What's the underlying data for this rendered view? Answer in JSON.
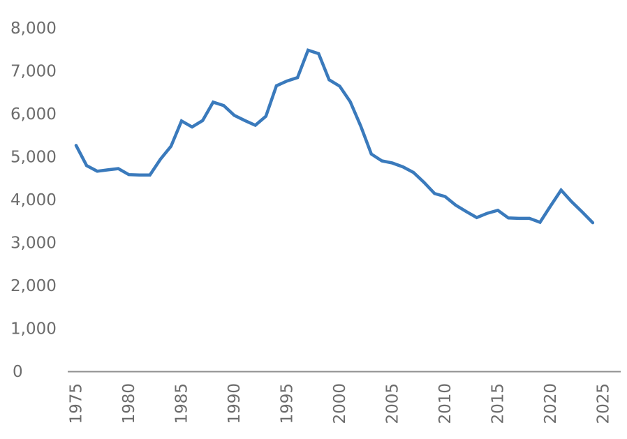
{
  "chart_data": {
    "type": "line",
    "title": "",
    "xlabel": "",
    "ylabel": "",
    "x": [
      1975,
      1976,
      1977,
      1978,
      1979,
      1980,
      1981,
      1982,
      1983,
      1984,
      1985,
      1986,
      1987,
      1988,
      1989,
      1990,
      1991,
      1992,
      1993,
      1994,
      1995,
      1996,
      1997,
      1998,
      1999,
      2000,
      2001,
      2002,
      2003,
      2004,
      2005,
      2006,
      2007,
      2008,
      2009,
      2010,
      2011,
      2012,
      2013,
      2014,
      2015,
      2016,
      2017,
      2018,
      2019,
      2020,
      2021,
      2022,
      2023,
      2024
    ],
    "values": [
      5270,
      4800,
      4670,
      4700,
      4730,
      4590,
      4580,
      4580,
      4950,
      5250,
      5840,
      5700,
      5850,
      6280,
      6200,
      5970,
      5850,
      5740,
      5950,
      6660,
      6770,
      6850,
      7490,
      7410,
      6800,
      6650,
      6290,
      5720,
      5070,
      4910,
      4860,
      4770,
      4640,
      4410,
      4150,
      4080,
      3880,
      3730,
      3590,
      3690,
      3760,
      3580,
      3570,
      3570,
      3480,
      3860,
      4230,
      3960,
      3720,
      3470
    ],
    "ylim": [
      0,
      8000
    ],
    "xlim": [
      1974,
      2027
    ],
    "yticks": [
      0,
      1000,
      2000,
      3000,
      4000,
      5000,
      6000,
      7000,
      8000
    ],
    "ytick_labels": [
      "0",
      "1,000",
      "2,000",
      "3,000",
      "4,000",
      "5,000",
      "6,000",
      "7,000",
      "8,000"
    ],
    "xticks": [
      1975,
      1980,
      1985,
      1990,
      1995,
      2000,
      2005,
      2010,
      2015,
      2020,
      2025
    ],
    "xtick_labels": [
      "1975",
      "1980",
      "1985",
      "1990",
      "1995",
      "2000",
      "2005",
      "2010",
      "2015",
      "2020",
      "2025"
    ],
    "grid": false,
    "legend_position": "none",
    "colors": {
      "line": "#3a7abc",
      "axis": "#8f8f8f",
      "tick_text": "#6c6c6c",
      "background": "#ffffff"
    }
  }
}
